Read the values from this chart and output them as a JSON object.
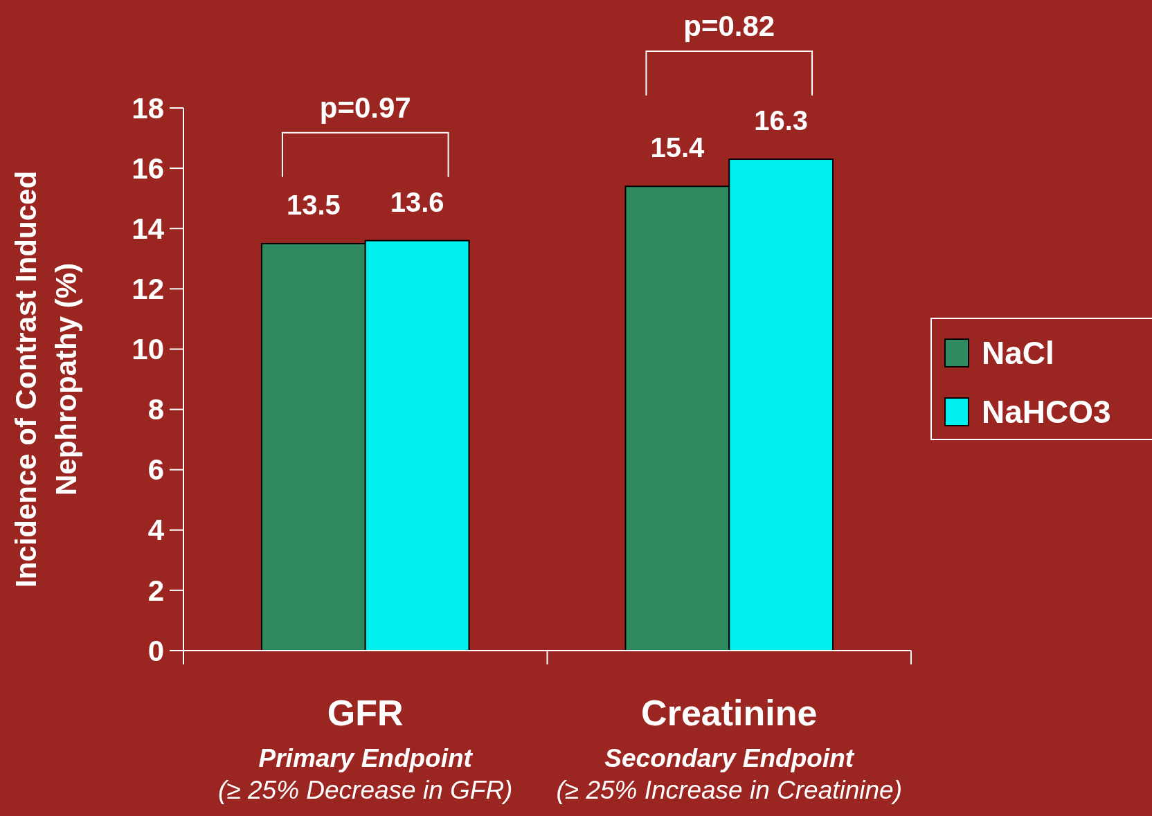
{
  "chart_data": {
    "type": "bar",
    "ylabel": "Incidence of Contrast Induced Nephropathy (%)",
    "categories": [
      "GFR\nPrimary Endpoint\n(≥ 25% Decrease in GFR)",
      "Creatinine\nSecondary Endpoint\n(≥ 25% Increase in Creatinine)"
    ],
    "series": [
      {
        "name": "NaCl",
        "color": "#2e8b60",
        "values": [
          13.5,
          15.4
        ]
      },
      {
        "name": "NaHCO3",
        "color": "#00f0f0",
        "values": [
          13.6,
          16.3
        ]
      }
    ],
    "ylim": [
      0,
      18
    ],
    "yticks": [
      0,
      2,
      4,
      6,
      8,
      10,
      12,
      14,
      16,
      18
    ],
    "data_labels": true,
    "legend": "right",
    "grid": false,
    "annotations": [
      "p=0.97",
      "p=0.82"
    ]
  }
}
